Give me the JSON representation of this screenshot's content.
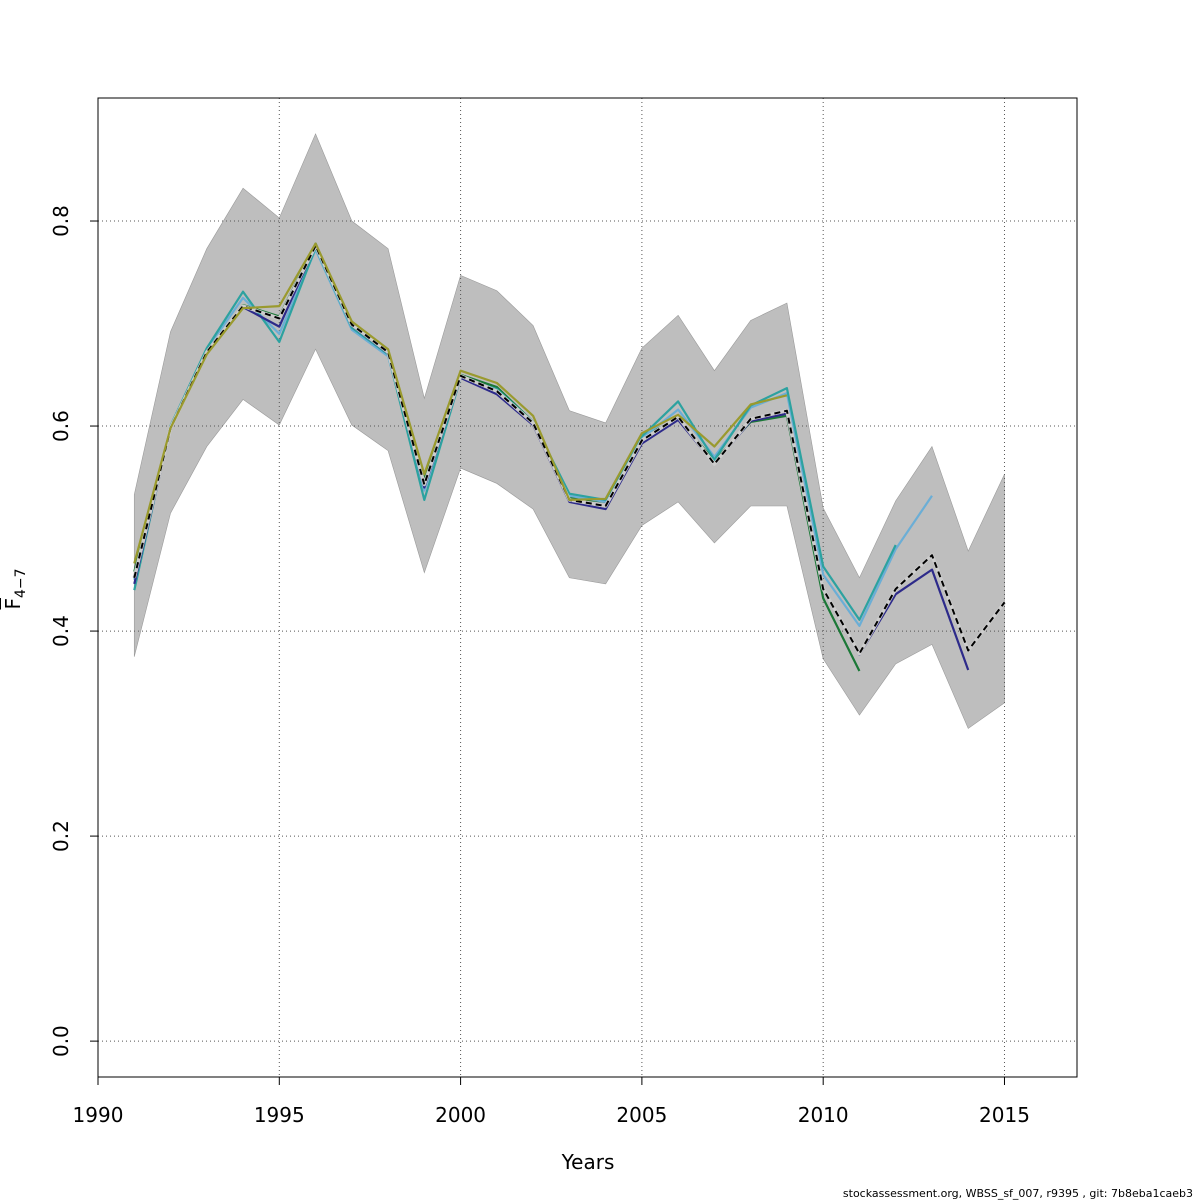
{
  "chart_data": {
    "type": "line",
    "xlabel": "Years",
    "ylabel_main": "F",
    "ylabel_sub": "4−7",
    "xlim": [
      1990,
      2017
    ],
    "ylim": [
      -0.035,
      0.92
    ],
    "x_ticks": [
      1990,
      1995,
      2000,
      2005,
      2010,
      2015
    ],
    "y_ticks": [
      0.0,
      0.2,
      0.4,
      0.6,
      0.8
    ],
    "y_tick_labels": [
      "0.0",
      "0.2",
      "0.4",
      "0.6",
      "0.8"
    ],
    "grid": true,
    "band": {
      "color": "#bebebe",
      "x": [
        1991,
        1992,
        1993,
        1994,
        1995,
        1996,
        1997,
        1998,
        1999,
        2000,
        2001,
        2002,
        2003,
        2004,
        2005,
        2006,
        2007,
        2008,
        2009,
        2010,
        2011,
        2012,
        2013,
        2014,
        2015
      ],
      "lower": [
        0.375,
        0.515,
        0.58,
        0.626,
        0.601,
        0.675,
        0.601,
        0.576,
        0.457,
        0.559,
        0.544,
        0.519,
        0.452,
        0.446,
        0.503,
        0.526,
        0.486,
        0.522,
        0.522,
        0.373,
        0.318,
        0.368,
        0.387,
        0.305,
        0.33
      ],
      "upper": [
        0.533,
        0.692,
        0.773,
        0.832,
        0.803,
        0.885,
        0.8,
        0.773,
        0.627,
        0.747,
        0.732,
        0.698,
        0.615,
        0.603,
        0.676,
        0.708,
        0.654,
        0.703,
        0.72,
        0.52,
        0.452,
        0.527,
        0.58,
        0.478,
        0.553
      ]
    },
    "series": [
      {
        "color": "#1b7837",
        "style": "solid",
        "x": [
          1991,
          1992,
          1993,
          1994,
          1995,
          1996,
          1997,
          1998,
          1999,
          2000,
          2001,
          2002,
          2003,
          2004,
          2005,
          2006,
          2007,
          2008,
          2009,
          2010,
          2011
        ],
        "values": [
          0.458,
          0.598,
          0.672,
          0.718,
          0.707,
          0.778,
          0.698,
          0.672,
          0.549,
          0.65,
          0.638,
          0.604,
          0.53,
          0.526,
          0.589,
          0.608,
          0.566,
          0.604,
          0.61,
          0.432,
          0.361
        ]
      },
      {
        "color": "#6baed6",
        "style": "solid",
        "x": [
          1991,
          1992,
          1993,
          1994,
          1995,
          1996,
          1997,
          1998,
          1999,
          2000,
          2001,
          2002,
          2003,
          2004,
          2005,
          2006,
          2007,
          2008,
          2009,
          2010,
          2011,
          2012,
          2013
        ],
        "values": [
          0.45,
          0.6,
          0.675,
          0.725,
          0.69,
          0.772,
          0.694,
          0.668,
          0.537,
          0.647,
          0.634,
          0.603,
          0.532,
          0.526,
          0.588,
          0.616,
          0.57,
          0.618,
          0.632,
          0.455,
          0.405,
          0.48,
          0.532
        ]
      },
      {
        "color": "#2ca2a0",
        "style": "solid",
        "x": [
          1991,
          1992,
          1993,
          1994,
          1995,
          1996,
          1997,
          1998,
          1999,
          2000,
          2001,
          2002,
          2003,
          2004,
          2005,
          2006,
          2007,
          2008,
          2009,
          2010,
          2011,
          2012
        ],
        "values": [
          0.44,
          0.6,
          0.676,
          0.731,
          0.682,
          0.774,
          0.696,
          0.67,
          0.528,
          0.647,
          0.636,
          0.604,
          0.534,
          0.528,
          0.59,
          0.624,
          0.567,
          0.62,
          0.637,
          0.463,
          0.411,
          0.484
        ]
      },
      {
        "color": "#2d2a8a",
        "style": "solid",
        "x": [
          1991,
          1992,
          1993,
          1994,
          1995,
          1996,
          1997,
          1998,
          1999,
          2000,
          2001,
          2002,
          2003,
          2004,
          2005,
          2006,
          2007,
          2008,
          2009,
          2010,
          2011,
          2012,
          2013,
          2014
        ],
        "values": [
          0.446,
          0.597,
          0.671,
          0.716,
          0.697,
          0.776,
          0.698,
          0.671,
          0.54,
          0.647,
          0.631,
          0.601,
          0.526,
          0.519,
          0.583,
          0.606,
          0.563,
          0.605,
          0.612,
          0.44,
          0.377,
          0.436,
          0.46,
          0.362
        ]
      },
      {
        "color": "#000000",
        "style": "dashed",
        "x": [
          1991,
          1992,
          1993,
          1994,
          1995,
          1996,
          1997,
          1998,
          1999,
          2000,
          2001,
          2002,
          2003,
          2004,
          2005,
          2006,
          2007,
          2008,
          2009,
          2010,
          2011,
          2012,
          2013,
          2014,
          2015
        ],
        "values": [
          0.452,
          0.598,
          0.672,
          0.717,
          0.705,
          0.776,
          0.699,
          0.672,
          0.543,
          0.649,
          0.634,
          0.603,
          0.528,
          0.522,
          0.586,
          0.609,
          0.563,
          0.607,
          0.615,
          0.441,
          0.378,
          0.441,
          0.474,
          0.381,
          0.428
        ]
      },
      {
        "color": "#9a9a2e",
        "style": "solid",
        "x": [
          1991,
          1992,
          1993,
          1994,
          1995,
          1996,
          1997,
          1998,
          1999,
          2000,
          2001,
          2002,
          2003,
          2004,
          2005,
          2006,
          2007,
          2008,
          2009
        ],
        "values": [
          0.466,
          0.598,
          0.67,
          0.715,
          0.717,
          0.778,
          0.702,
          0.675,
          0.553,
          0.654,
          0.642,
          0.61,
          0.528,
          0.529,
          0.593,
          0.611,
          0.58,
          0.621,
          0.63
        ]
      }
    ]
  },
  "footer": "stockassessment.org, WBSS_sf_007, r9395 , git: 7b8eba1caeb3"
}
